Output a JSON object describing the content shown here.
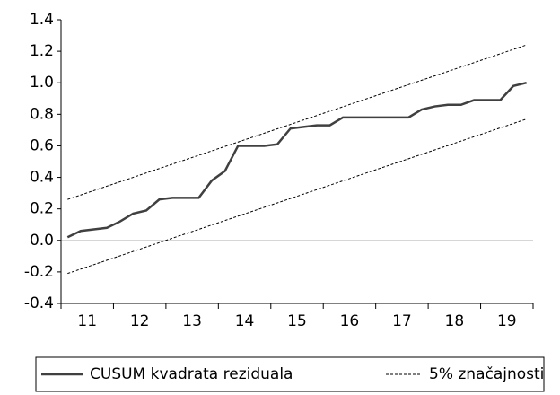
{
  "chart_data": {
    "type": "line",
    "categories": [
      "11",
      null,
      null,
      null,
      "12",
      null,
      null,
      null,
      "13",
      null,
      null,
      null,
      "14",
      null,
      null,
      null,
      "15",
      null,
      null,
      null,
      "16",
      null,
      null,
      null,
      "17",
      null,
      null,
      null,
      "18",
      null,
      null,
      null,
      "19",
      null,
      null,
      null
    ],
    "series": [
      {
        "name": "CUSUM kvadrata reziduala",
        "color": "#404040",
        "style": "solid",
        "values": [
          0.02,
          0.06,
          0.07,
          0.08,
          0.12,
          0.17,
          0.19,
          0.26,
          0.27,
          0.27,
          0.27,
          0.38,
          0.44,
          0.6,
          0.6,
          0.6,
          0.61,
          0.71,
          0.72,
          0.73,
          0.73,
          0.78,
          0.78,
          0.78,
          0.78,
          0.78,
          0.78,
          0.83,
          0.85,
          0.86,
          0.86,
          0.89,
          0.89,
          0.89,
          0.98,
          1.0
        ]
      },
      {
        "name": "5% značajnosti",
        "color": "#000000",
        "style": "dashed",
        "upper": [
          0.26,
          0.288,
          0.316,
          0.344,
          0.372,
          0.4,
          0.428,
          0.456,
          0.484,
          0.512,
          0.54,
          0.568,
          0.596,
          0.624,
          0.652,
          0.68,
          0.708,
          0.736,
          0.764,
          0.792,
          0.82,
          0.848,
          0.876,
          0.904,
          0.932,
          0.96,
          0.988,
          1.016,
          1.044,
          1.072,
          1.1,
          1.128,
          1.156,
          1.184,
          1.212,
          1.24
        ],
        "lower": [
          -0.21,
          -0.182,
          -0.154,
          -0.126,
          -0.098,
          -0.07,
          -0.042,
          -0.014,
          0.014,
          0.042,
          0.07,
          0.098,
          0.126,
          0.154,
          0.182,
          0.21,
          0.238,
          0.266,
          0.294,
          0.322,
          0.35,
          0.378,
          0.406,
          0.434,
          0.462,
          0.49,
          0.518,
          0.546,
          0.574,
          0.602,
          0.63,
          0.658,
          0.686,
          0.714,
          0.742,
          0.77
        ]
      }
    ],
    "ylim": [
      -0.4,
      1.4
    ],
    "yticks": [
      -0.4,
      -0.2,
      {
        "value": 0,
        "label": "0.0"
      },
      0.2,
      0.4,
      0.6,
      0.8,
      {
        "value": 1,
        "label": "1.0"
      },
      1.2,
      1.4
    ],
    "zero_line": true,
    "legend": "bottom"
  }
}
